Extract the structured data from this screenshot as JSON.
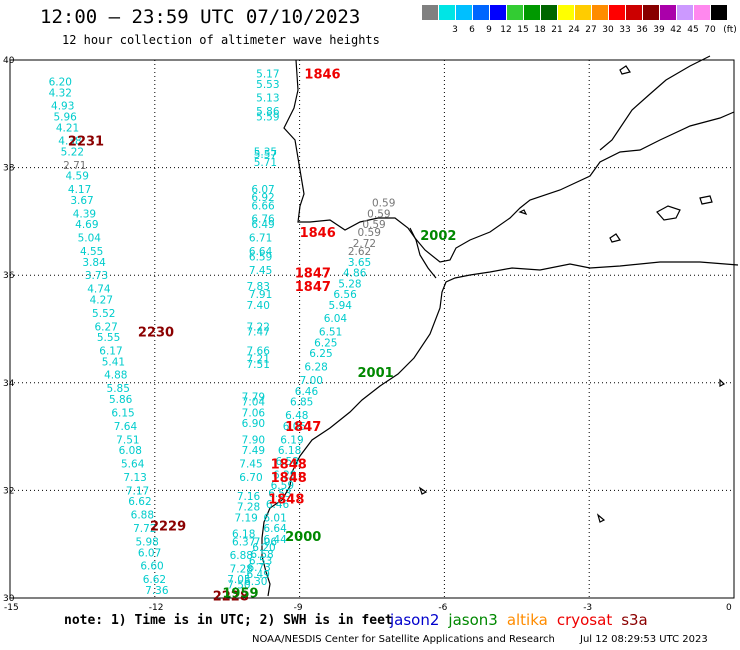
{
  "header": {
    "title": "12:00 – 23:59 UTC 07/10/2023",
    "subtitle": "12 hour collection of altimeter wave heights"
  },
  "colorbar": {
    "unit_label": "(ft)",
    "bins": [
      {
        "color": "#808080",
        "label": ""
      },
      {
        "color": "#00e5e5",
        "label": "3"
      },
      {
        "color": "#00bfff",
        "label": "6"
      },
      {
        "color": "#0066ff",
        "label": "9"
      },
      {
        "color": "#0000ff",
        "label": "12"
      },
      {
        "color": "#33cc33",
        "label": "15"
      },
      {
        "color": "#009900",
        "label": "18"
      },
      {
        "color": "#006600",
        "label": "21"
      },
      {
        "color": "#ffff00",
        "label": "24"
      },
      {
        "color": "#ffcc00",
        "label": "27"
      },
      {
        "color": "#ff8c00",
        "label": "30"
      },
      {
        "color": "#ff0000",
        "label": "33"
      },
      {
        "color": "#cc0000",
        "label": "36"
      },
      {
        "color": "#880000",
        "label": "39"
      },
      {
        "color": "#aa00aa",
        "label": "42"
      },
      {
        "color": "#cc99ff",
        "label": "45"
      },
      {
        "color": "#ff88ee",
        "label": "70"
      },
      {
        "color": "#000000",
        "label": ""
      }
    ]
  },
  "axes": {
    "lat_labels": [
      "40",
      "38",
      "36",
      "34",
      "32",
      "30"
    ],
    "lon_labels": [
      "-15",
      "-12",
      "-9",
      "-6",
      "-3",
      "0"
    ],
    "lat_range": [
      30,
      40
    ],
    "lon_range": [
      -15,
      0
    ],
    "grid": true
  },
  "chart_data": {
    "type": "scatter",
    "units": "ft",
    "colors": {
      "cyan": "#00cccc",
      "gray": "#777777",
      "red": "#ee0000",
      "darkred": "#8b0000",
      "green": "#008800"
    },
    "tracks": [
      {
        "time": "2231",
        "time_color": "darkred",
        "time_lon": -13.8,
        "time_lat": 38.5
      },
      {
        "time": "2230",
        "time_color": "darkred",
        "time_lon": -12.35,
        "time_lat": 34.95
      },
      {
        "time": "2229",
        "time_color": "darkred",
        "time_lon": -12.1,
        "time_lat": 31.35
      },
      {
        "time": "2228",
        "time_color": "darkred",
        "time_lon": -10.8,
        "time_lat": 30.05
      },
      {
        "time": "1846",
        "time_color": "red",
        "time_lon": -8.9,
        "time_lat": 39.75
      },
      {
        "time": "1846",
        "time_color": "red",
        "time_lon": -9.0,
        "time_lat": 36.8
      },
      {
        "time": "1847",
        "time_color": "red",
        "time_lon": -9.1,
        "time_lat": 36.05
      },
      {
        "time": "1847",
        "time_color": "red",
        "time_lon": -9.1,
        "time_lat": 35.8
      },
      {
        "time": "1847",
        "time_color": "red",
        "time_lon": -9.3,
        "time_lat": 33.2
      },
      {
        "time": "1848",
        "time_color": "red",
        "time_lon": -9.6,
        "time_lat": 32.5
      },
      {
        "time": "1848",
        "time_color": "red",
        "time_lon": -9.6,
        "time_lat": 32.25
      },
      {
        "time": "1848",
        "time_color": "red",
        "time_lon": -9.65,
        "time_lat": 31.85
      },
      {
        "time": "2002",
        "time_color": "green",
        "time_lon": -6.5,
        "time_lat": 36.75
      },
      {
        "time": "2001",
        "time_color": "green",
        "time_lon": -7.8,
        "time_lat": 34.2
      },
      {
        "time": "2000",
        "time_color": "green",
        "time_lon": -9.3,
        "time_lat": 31.15
      },
      {
        "time": "1959",
        "time_color": "green",
        "time_lon": -10.6,
        "time_lat": 30.1
      }
    ],
    "points": [
      {
        "lon": -14.2,
        "lat": 39.6,
        "v": "6.20",
        "c": "cyan"
      },
      {
        "lon": -14.2,
        "lat": 39.4,
        "v": "4.32",
        "c": "cyan"
      },
      {
        "lon": -14.15,
        "lat": 39.15,
        "v": "4.93",
        "c": "cyan"
      },
      {
        "lon": -14.1,
        "lat": 38.95,
        "v": "5.96",
        "c": "cyan"
      },
      {
        "lon": -14.05,
        "lat": 38.75,
        "v": "4.21",
        "c": "cyan"
      },
      {
        "lon": -14.0,
        "lat": 38.5,
        "v": "4.38",
        "c": "cyan"
      },
      {
        "lon": -13.95,
        "lat": 38.3,
        "v": "5.22",
        "c": "cyan"
      },
      {
        "lon": -13.9,
        "lat": 38.05,
        "v": "2.71",
        "c": "gray"
      },
      {
        "lon": -13.85,
        "lat": 37.85,
        "v": "4.59",
        "c": "cyan"
      },
      {
        "lon": -13.8,
        "lat": 37.6,
        "v": "4.17",
        "c": "cyan"
      },
      {
        "lon": -13.75,
        "lat": 37.4,
        "v": "3.67",
        "c": "cyan"
      },
      {
        "lon": -13.7,
        "lat": 37.15,
        "v": "4.39",
        "c": "cyan"
      },
      {
        "lon": -13.65,
        "lat": 36.95,
        "v": "4.69",
        "c": "cyan"
      },
      {
        "lon": -13.6,
        "lat": 36.7,
        "v": "5.04",
        "c": "cyan"
      },
      {
        "lon": -13.55,
        "lat": 36.45,
        "v": "4.55",
        "c": "cyan"
      },
      {
        "lon": -13.5,
        "lat": 36.25,
        "v": "3.84",
        "c": "cyan"
      },
      {
        "lon": -13.45,
        "lat": 36.0,
        "v": "3.73",
        "c": "cyan"
      },
      {
        "lon": -13.4,
        "lat": 35.75,
        "v": "4.74",
        "c": "cyan"
      },
      {
        "lon": -13.35,
        "lat": 35.55,
        "v": "4.27",
        "c": "cyan"
      },
      {
        "lon": -13.3,
        "lat": 35.3,
        "v": "5.52",
        "c": "cyan"
      },
      {
        "lon": -13.25,
        "lat": 35.05,
        "v": "6.27",
        "c": "cyan"
      },
      {
        "lon": -13.2,
        "lat": 34.85,
        "v": "5.55",
        "c": "cyan"
      },
      {
        "lon": -13.15,
        "lat": 34.6,
        "v": "6.17",
        "c": "cyan"
      },
      {
        "lon": -13.1,
        "lat": 34.4,
        "v": "5.41",
        "c": "cyan"
      },
      {
        "lon": -13.05,
        "lat": 34.15,
        "v": "4.88",
        "c": "cyan"
      },
      {
        "lon": -13.0,
        "lat": 33.9,
        "v": "5.85",
        "c": "cyan"
      },
      {
        "lon": -12.95,
        "lat": 33.7,
        "v": "5.86",
        "c": "cyan"
      },
      {
        "lon": -12.9,
        "lat": 33.45,
        "v": "6.15",
        "c": "cyan"
      },
      {
        "lon": -12.85,
        "lat": 33.2,
        "v": "7.64",
        "c": "cyan"
      },
      {
        "lon": -12.8,
        "lat": 32.95,
        "v": "7.51",
        "c": "cyan"
      },
      {
        "lon": -12.75,
        "lat": 32.75,
        "v": "6.08",
        "c": "cyan"
      },
      {
        "lon": -12.7,
        "lat": 32.5,
        "v": "5.64",
        "c": "cyan"
      },
      {
        "lon": -12.65,
        "lat": 32.25,
        "v": "7.13",
        "c": "cyan"
      },
      {
        "lon": -12.6,
        "lat": 32.0,
        "v": "7.17",
        "c": "cyan"
      },
      {
        "lon": -12.55,
        "lat": 31.8,
        "v": "6.62",
        "c": "cyan"
      },
      {
        "lon": -12.5,
        "lat": 31.55,
        "v": "6.88",
        "c": "cyan"
      },
      {
        "lon": -12.45,
        "lat": 31.3,
        "v": "7.72",
        "c": "cyan"
      },
      {
        "lon": -12.4,
        "lat": 31.05,
        "v": "5.98",
        "c": "cyan"
      },
      {
        "lon": -12.35,
        "lat": 30.85,
        "v": "6.07",
        "c": "cyan"
      },
      {
        "lon": -12.3,
        "lat": 30.6,
        "v": "6.60",
        "c": "cyan"
      },
      {
        "lon": -12.25,
        "lat": 30.35,
        "v": "6.62",
        "c": "cyan"
      },
      {
        "lon": -12.2,
        "lat": 30.15,
        "v": "7.36",
        "c": "cyan"
      },
      {
        "lon": -9.9,
        "lat": 39.75,
        "v": "5.17",
        "c": "cyan"
      },
      {
        "lon": -9.9,
        "lat": 39.55,
        "v": "5.53",
        "c": "cyan"
      },
      {
        "lon": -9.9,
        "lat": 39.3,
        "v": "5.13",
        "c": "cyan"
      },
      {
        "lon": -9.9,
        "lat": 39.05,
        "v": "5.86",
        "c": "cyan"
      },
      {
        "lon": -9.9,
        "lat": 38.95,
        "v": "5.59",
        "c": "cyan"
      },
      {
        "lon": -9.95,
        "lat": 38.3,
        "v": "5.35",
        "c": "cyan"
      },
      {
        "lon": -9.95,
        "lat": 38.25,
        "v": "5.57",
        "c": "cyan"
      },
      {
        "lon": -9.95,
        "lat": 38.1,
        "v": "5.71",
        "c": "cyan"
      },
      {
        "lon": -10.0,
        "lat": 37.6,
        "v": "6.07",
        "c": "cyan"
      },
      {
        "lon": -10.0,
        "lat": 37.45,
        "v": "6.92",
        "c": "cyan"
      },
      {
        "lon": -10.0,
        "lat": 37.3,
        "v": "6.66",
        "c": "cyan"
      },
      {
        "lon": -10.0,
        "lat": 37.05,
        "v": "6.76",
        "c": "cyan"
      },
      {
        "lon": -10.0,
        "lat": 36.95,
        "v": "6.49",
        "c": "cyan"
      },
      {
        "lon": -10.05,
        "lat": 36.7,
        "v": "6.71",
        "c": "cyan"
      },
      {
        "lon": -10.05,
        "lat": 36.45,
        "v": "6.64",
        "c": "cyan"
      },
      {
        "lon": -10.05,
        "lat": 36.35,
        "v": "6.59",
        "c": "cyan"
      },
      {
        "lon": -10.05,
        "lat": 36.1,
        "v": "7.45",
        "c": "cyan"
      },
      {
        "lon": -10.1,
        "lat": 35.8,
        "v": "7.83",
        "c": "cyan"
      },
      {
        "lon": -10.05,
        "lat": 35.65,
        "v": "7.91",
        "c": "cyan"
      },
      {
        "lon": -10.1,
        "lat": 35.45,
        "v": "7.40",
        "c": "cyan"
      },
      {
        "lon": -10.1,
        "lat": 35.05,
        "v": "7.22",
        "c": "cyan"
      },
      {
        "lon": -10.1,
        "lat": 34.95,
        "v": "7.47",
        "c": "cyan"
      },
      {
        "lon": -10.1,
        "lat": 34.6,
        "v": "7.66",
        "c": "cyan"
      },
      {
        "lon": -10.1,
        "lat": 34.45,
        "v": "7.21",
        "c": "cyan"
      },
      {
        "lon": -10.1,
        "lat": 34.35,
        "v": "7.51",
        "c": "cyan"
      },
      {
        "lon": -10.2,
        "lat": 33.75,
        "v": "7.79",
        "c": "cyan"
      },
      {
        "lon": -10.2,
        "lat": 33.65,
        "v": "7.04",
        "c": "cyan"
      },
      {
        "lon": -10.2,
        "lat": 33.45,
        "v": "7.06",
        "c": "cyan"
      },
      {
        "lon": -10.2,
        "lat": 33.25,
        "v": "6.90",
        "c": "cyan"
      },
      {
        "lon": -10.2,
        "lat": 32.95,
        "v": "7.90",
        "c": "cyan"
      },
      {
        "lon": -10.2,
        "lat": 32.75,
        "v": "7.49",
        "c": "cyan"
      },
      {
        "lon": -10.25,
        "lat": 32.5,
        "v": "7.45",
        "c": "cyan"
      },
      {
        "lon": -10.25,
        "lat": 32.25,
        "v": "6.70",
        "c": "cyan"
      },
      {
        "lon": -10.3,
        "lat": 31.9,
        "v": "7.16",
        "c": "cyan"
      },
      {
        "lon": -10.3,
        "lat": 31.7,
        "v": "7.28",
        "c": "cyan"
      },
      {
        "lon": -10.35,
        "lat": 31.5,
        "v": "7.19",
        "c": "cyan"
      },
      {
        "lon": -10.4,
        "lat": 31.2,
        "v": "6.18",
        "c": "cyan"
      },
      {
        "lon": -10.4,
        "lat": 31.05,
        "v": "6.37",
        "c": "cyan"
      },
      {
        "lon": -10.45,
        "lat": 30.8,
        "v": "6.88",
        "c": "cyan"
      },
      {
        "lon": -10.45,
        "lat": 30.55,
        "v": "7.28",
        "c": "cyan"
      },
      {
        "lon": -10.5,
        "lat": 30.35,
        "v": "7.05",
        "c": "cyan"
      },
      {
        "lon": -10.5,
        "lat": 30.25,
        "v": "7.50",
        "c": "cyan"
      },
      {
        "lon": -9.95,
        "lat": 31.05,
        "v": "7.06",
        "c": "cyan"
      },
      {
        "lon": -9.98,
        "lat": 30.95,
        "v": "6.20",
        "c": "cyan"
      },
      {
        "lon": -10.02,
        "lat": 30.82,
        "v": "6.58",
        "c": "cyan"
      },
      {
        "lon": -10.05,
        "lat": 30.7,
        "v": "6.53",
        "c": "cyan"
      },
      {
        "lon": -10.08,
        "lat": 30.58,
        "v": "6.73",
        "c": "cyan"
      },
      {
        "lon": -10.1,
        "lat": 30.45,
        "v": "6.49",
        "c": "cyan"
      },
      {
        "lon": -10.15,
        "lat": 30.32,
        "v": "6.30",
        "c": "cyan"
      },
      {
        "lon": -9.75,
        "lat": 31.5,
        "v": "6.01",
        "c": "cyan"
      },
      {
        "lon": -9.75,
        "lat": 31.3,
        "v": "6.64",
        "c": "cyan"
      },
      {
        "lon": -9.75,
        "lat": 31.1,
        "v": "6.44",
        "c": "cyan"
      },
      {
        "lon": -9.7,
        "lat": 31.75,
        "v": "6.46",
        "c": "cyan"
      },
      {
        "lon": -9.65,
        "lat": 31.95,
        "v": "6.53",
        "c": "cyan"
      },
      {
        "lon": -9.6,
        "lat": 32.1,
        "v": "6.59",
        "c": "cyan"
      },
      {
        "lon": -9.55,
        "lat": 32.3,
        "v": "6.29",
        "c": "cyan"
      },
      {
        "lon": -9.5,
        "lat": 32.55,
        "v": "6.58",
        "c": "cyan"
      },
      {
        "lon": -9.45,
        "lat": 32.75,
        "v": "6.18",
        "c": "cyan"
      },
      {
        "lon": -9.4,
        "lat": 32.95,
        "v": "6.19",
        "c": "cyan"
      },
      {
        "lon": -9.35,
        "lat": 33.2,
        "v": "6.05",
        "c": "cyan"
      },
      {
        "lon": -9.3,
        "lat": 33.4,
        "v": "6.48",
        "c": "cyan"
      },
      {
        "lon": -9.2,
        "lat": 33.65,
        "v": "6.85",
        "c": "cyan"
      },
      {
        "lon": -9.1,
        "lat": 33.85,
        "v": "6.46",
        "c": "cyan"
      },
      {
        "lon": -9.0,
        "lat": 34.05,
        "v": "7.00",
        "c": "cyan"
      },
      {
        "lon": -8.9,
        "lat": 34.3,
        "v": "6.28",
        "c": "cyan"
      },
      {
        "lon": -8.8,
        "lat": 34.55,
        "v": "6.25",
        "c": "cyan"
      },
      {
        "lon": -8.7,
        "lat": 34.75,
        "v": "6.25",
        "c": "cyan"
      },
      {
        "lon": -8.6,
        "lat": 34.95,
        "v": "6.51",
        "c": "cyan"
      },
      {
        "lon": -8.5,
        "lat": 35.2,
        "v": "6.04",
        "c": "cyan"
      },
      {
        "lon": -8.4,
        "lat": 35.45,
        "v": "5.94",
        "c": "cyan"
      },
      {
        "lon": -8.3,
        "lat": 35.65,
        "v": "6.56",
        "c": "cyan"
      },
      {
        "lon": -8.2,
        "lat": 35.85,
        "v": "5.28",
        "c": "cyan"
      },
      {
        "lon": -8.1,
        "lat": 36.05,
        "v": "4.86",
        "c": "cyan"
      },
      {
        "lon": -8.0,
        "lat": 36.25,
        "v": "3.65",
        "c": "cyan"
      },
      {
        "lon": -8.0,
        "lat": 36.45,
        "v": "2.62",
        "c": "gray"
      },
      {
        "lon": -7.9,
        "lat": 36.6,
        "v": "2.72",
        "c": "gray"
      },
      {
        "lon": -7.8,
        "lat": 36.8,
        "v": "0.59",
        "c": "gray"
      },
      {
        "lon": -7.7,
        "lat": 36.95,
        "v": "0.59",
        "c": "gray"
      },
      {
        "lon": -7.6,
        "lat": 37.15,
        "v": "0.59",
        "c": "gray"
      },
      {
        "lon": -7.5,
        "lat": 37.35,
        "v": "0.59",
        "c": "gray"
      }
    ]
  },
  "footer": {
    "note": "note: 1) Time is in UTC; 2) SWH is in feet",
    "satellites": [
      {
        "name": "jason2",
        "color": "#0000cc"
      },
      {
        "name": "jason3",
        "color": "#008800"
      },
      {
        "name": "altika",
        "color": "#ff8c00"
      },
      {
        "name": "cryosat",
        "color": "#ee0000"
      },
      {
        "name": "s3a",
        "color": "#8b0000"
      }
    ],
    "credit": "NOAA/NESDIS Center for Satellite Applications and Research",
    "timestamp": "Jul 12 08:29:53 UTC 2023"
  }
}
